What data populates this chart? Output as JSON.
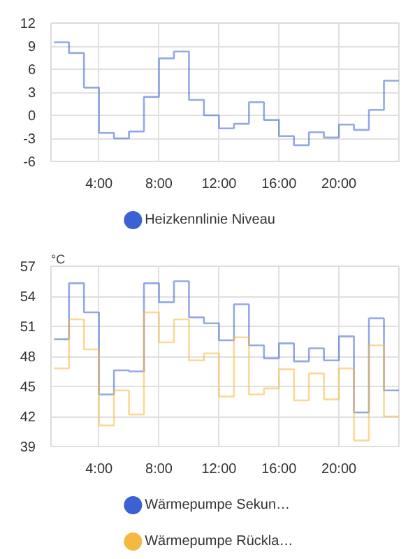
{
  "chart_data": [
    {
      "type": "step",
      "x": [
        1,
        2,
        3,
        4,
        5,
        6,
        7,
        8,
        9,
        10,
        11,
        12,
        13,
        14,
        15,
        16,
        17,
        18,
        19,
        20,
        21,
        22,
        23,
        24
      ],
      "xlim": [
        0.8,
        24
      ],
      "xticks": [
        {
          "value": 4,
          "label": "4:00"
        },
        {
          "value": 8,
          "label": "8:00"
        },
        {
          "value": 12,
          "label": "12:00"
        },
        {
          "value": 16,
          "label": "16:00"
        },
        {
          "value": 20,
          "label": "20:00"
        }
      ],
      "ylim": [
        -6,
        12
      ],
      "yticks": [
        -6,
        -3,
        0,
        3,
        6,
        9,
        12
      ],
      "grid": true,
      "legend": "bottom",
      "series": [
        {
          "name": "Heizkennlinie Niveau",
          "color": "#3a62d4",
          "values": [
            9.5,
            8.1,
            3.6,
            -2.3,
            -3.0,
            -2.1,
            2.4,
            7.4,
            8.3,
            2.0,
            0.0,
            -1.7,
            -1.1,
            1.7,
            -0.6,
            -2.7,
            -3.9,
            -2.2,
            -2.9,
            -1.2,
            -1.9,
            0.7,
            4.5,
            4.5
          ]
        }
      ]
    },
    {
      "type": "step",
      "ylabel": "°C",
      "x": [
        1,
        2,
        3,
        4,
        5,
        6,
        7,
        8,
        9,
        10,
        11,
        12,
        13,
        14,
        15,
        16,
        17,
        18,
        19,
        20,
        21,
        22,
        23,
        24
      ],
      "xlim": [
        0.8,
        24
      ],
      "xticks": [
        {
          "value": 4,
          "label": "4:00"
        },
        {
          "value": 8,
          "label": "8:00"
        },
        {
          "value": 12,
          "label": "12:00"
        },
        {
          "value": 16,
          "label": "16:00"
        },
        {
          "value": 20,
          "label": "20:00"
        }
      ],
      "ylim": [
        39,
        57
      ],
      "yticks": [
        39,
        42,
        45,
        48,
        51,
        54,
        57
      ],
      "grid": true,
      "legend": "bottom",
      "series": [
        {
          "name": "Wärmepumpe Sekun…",
          "color": "#3a62d4",
          "values": [
            49.7,
            55.3,
            52.4,
            44.2,
            46.6,
            46.5,
            55.3,
            53.4,
            55.5,
            51.9,
            51.3,
            49.6,
            53.2,
            49.1,
            47.8,
            49.3,
            47.5,
            48.8,
            47.6,
            50.0,
            42.4,
            51.8,
            44.6,
            44.6
          ]
        },
        {
          "name": "Wärmepumpe Rückla…",
          "color": "#f5b942",
          "values": [
            46.8,
            51.7,
            48.7,
            41.1,
            44.6,
            42.2,
            52.4,
            49.4,
            51.7,
            47.6,
            48.3,
            44.0,
            49.9,
            44.2,
            44.8,
            46.7,
            43.6,
            46.3,
            43.7,
            46.8,
            39.6,
            49.1,
            42.0,
            42.0
          ]
        }
      ]
    }
  ]
}
